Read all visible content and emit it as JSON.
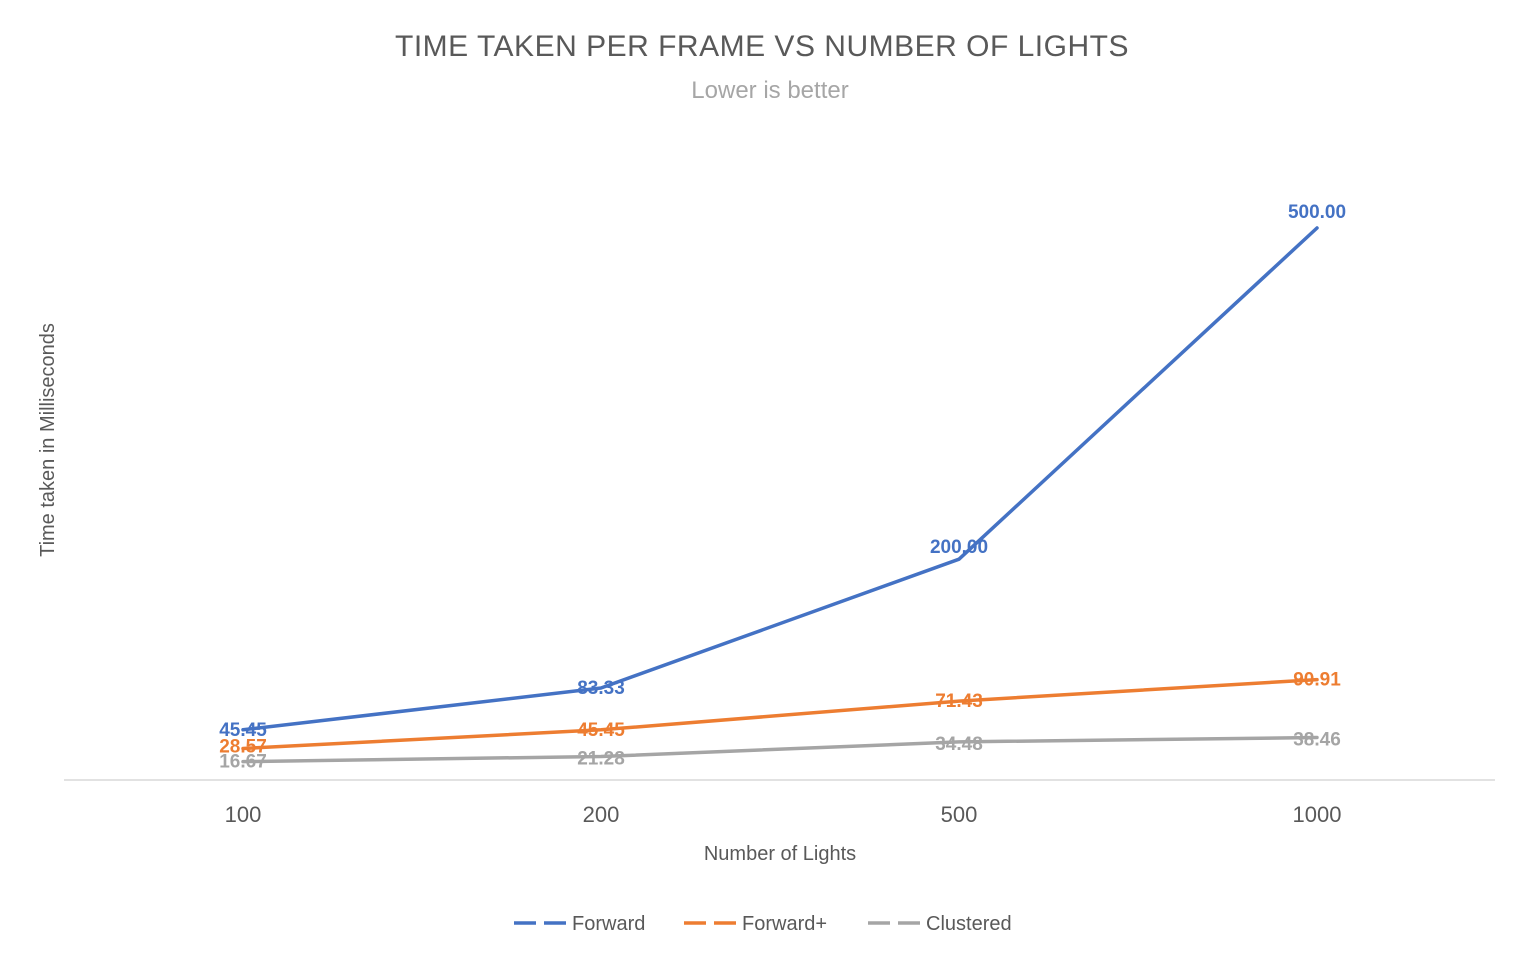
{
  "chart_data": {
    "type": "line",
    "title": "TIME TAKEN PER FRAME VS NUMBER OF LIGHTS",
    "subtitle": "Lower is better",
    "xlabel": "Number of Lights",
    "ylabel": "Time taken in Milliseconds",
    "categories": [
      "100",
      "200",
      "500",
      "1000"
    ],
    "ylim": [
      0,
      550
    ],
    "grid": false,
    "legend_position": "bottom",
    "series": [
      {
        "name": "Forward",
        "color": "#4472c4",
        "values": [
          45.45,
          83.33,
          200.0,
          500.0
        ],
        "labels": [
          "45.45",
          "83.33",
          "200.00",
          "500.00"
        ]
      },
      {
        "name": "Forward+",
        "color": "#ed7d31",
        "values": [
          28.57,
          45.45,
          71.43,
          90.91
        ],
        "labels": [
          "28.57",
          "45.45",
          "71.43",
          "90.91"
        ]
      },
      {
        "name": "Clustered",
        "color": "#a5a5a5",
        "values": [
          16.67,
          21.28,
          34.48,
          38.46
        ],
        "labels": [
          "16.67",
          "21.28",
          "34.48",
          "38.46"
        ]
      }
    ]
  }
}
